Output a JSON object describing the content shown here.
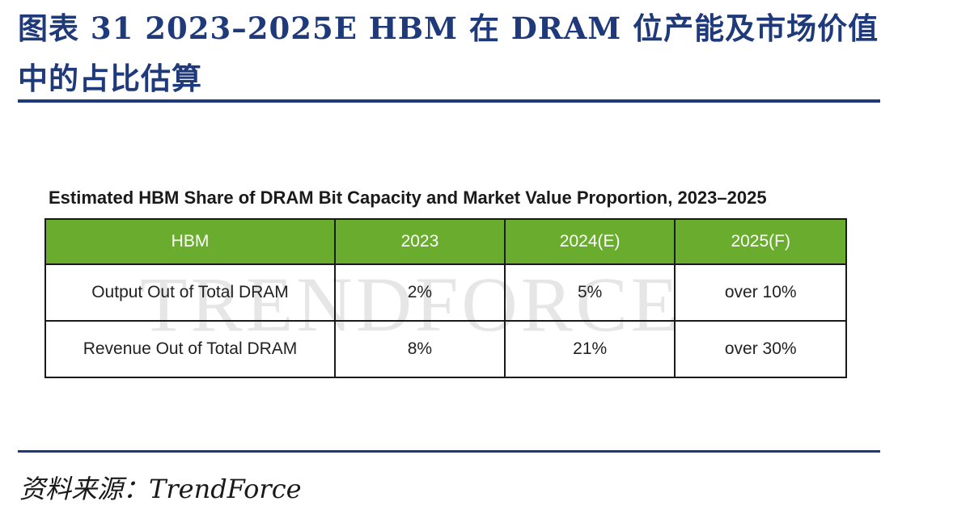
{
  "figure": {
    "title": "图表 31  2023–2025E HBM 在 DRAM 位产能及市场价值中的占比估算"
  },
  "table": {
    "title": "Estimated HBM Share of DRAM Bit Capacity and Market Value Proportion, 2023–2025",
    "header": [
      "HBM",
      "2023",
      "2024(E)",
      "2025(F)"
    ],
    "rows": [
      [
        "Output Out of Total DRAM",
        "2%",
        "5%",
        "over 10%"
      ],
      [
        "Revenue Out of Total DRAM",
        "8%",
        "21%",
        "over 30%"
      ]
    ],
    "watermark": "TRENDFORCE",
    "header_color": "#6aad2e"
  },
  "source": "资料来源：TrendForce",
  "colors": {
    "title": "#1f3a7a",
    "rule": "#1f3a7a"
  }
}
